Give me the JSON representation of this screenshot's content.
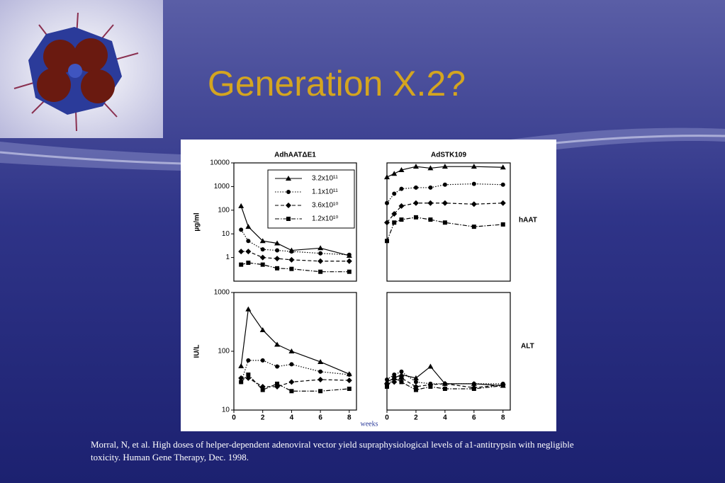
{
  "title": "Generation X.2?",
  "caption": [
    "Morral, N, et al. High doses of helper-dependent adenoviral vector yield supraphysiological levels of a1-antitrypsin with negligible",
    "toxicity. Human Gene Therapy, Dec. 1998."
  ],
  "figure": {
    "row_labels": [
      "hAAT",
      "ALT"
    ],
    "x_label": "weeks"
  },
  "chart_data": [
    {
      "type": "line",
      "title": "AdhAATΔE1",
      "y_label": "µg/ml",
      "log_y": true,
      "legend": "upper right",
      "ylim": [
        0.1,
        10000
      ],
      "yticks": [
        10000,
        1000,
        100,
        10,
        1
      ],
      "xlim": [
        0,
        8.5
      ],
      "x": [
        0.5,
        1,
        2,
        3,
        4,
        6,
        8
      ],
      "series": [
        {
          "name": "3.2x10¹¹",
          "color": "#000000",
          "marker": "triangle",
          "dash": "solid",
          "values": [
            150,
            20,
            5,
            4,
            2,
            2.5,
            1.2
          ]
        },
        {
          "name": "1.1x10¹¹",
          "color": "#000000",
          "marker": "circle",
          "dash": "dotted",
          "values": [
            15,
            5,
            2.2,
            2,
            1.8,
            1.5,
            1.3
          ]
        },
        {
          "name": "3.6x10¹⁰",
          "color": "#000000",
          "marker": "diamond",
          "dash": "dashed",
          "values": [
            1.8,
            1.8,
            1,
            0.9,
            0.8,
            0.7,
            0.7
          ]
        },
        {
          "name": "1.2x10¹⁰",
          "color": "#000000",
          "marker": "square",
          "dash": "dashdot",
          "values": [
            0.5,
            0.6,
            0.5,
            0.35,
            0.33,
            0.25,
            0.25
          ]
        }
      ]
    },
    {
      "type": "line",
      "title": "AdSTK109",
      "log_y": true,
      "ylim": [
        0.1,
        10000
      ],
      "xlim": [
        0,
        8.5
      ],
      "x": [
        0,
        0.5,
        1,
        2,
        3,
        4,
        6,
        8
      ],
      "series": [
        {
          "color": "#000000",
          "marker": "triangle",
          "dash": "solid",
          "values": [
            2500,
            3500,
            5000,
            7000,
            6000,
            7000,
            7000,
            6500
          ]
        },
        {
          "color": "#000000",
          "marker": "circle",
          "dash": "dotted",
          "values": [
            200,
            500,
            800,
            900,
            900,
            1200,
            1300,
            1200
          ]
        },
        {
          "color": "#000000",
          "marker": "diamond",
          "dash": "dashed",
          "values": [
            30,
            70,
            150,
            200,
            200,
            200,
            180,
            200
          ]
        },
        {
          "color": "#000000",
          "marker": "square",
          "dash": "dashdot",
          "values": [
            5,
            30,
            40,
            50,
            40,
            30,
            20,
            25
          ]
        }
      ]
    },
    {
      "type": "line",
      "y_label": "IU/L",
      "log_y": true,
      "ylim": [
        10,
        1000
      ],
      "yticks": [
        1000,
        100,
        10
      ],
      "xlim": [
        0,
        8.5
      ],
      "xticks": [
        0,
        2,
        4,
        6,
        8
      ],
      "x": [
        0.5,
        1,
        2,
        3,
        4,
        6,
        8
      ],
      "series": [
        {
          "color": "#000000",
          "marker": "triangle",
          "dash": "solid",
          "values": [
            56,
            520,
            230,
            130,
            100,
            66,
            41
          ]
        },
        {
          "color": "#000000",
          "marker": "circle",
          "dash": "dotted",
          "values": [
            30,
            70,
            70,
            55,
            60,
            45,
            40
          ]
        },
        {
          "color": "#000000",
          "marker": "diamond",
          "dash": "dashed",
          "values": [
            35,
            35,
            25,
            25,
            30,
            33,
            32
          ]
        },
        {
          "color": "#000000",
          "marker": "square",
          "dash": "dashdot",
          "values": [
            30,
            40,
            22,
            28,
            21,
            21,
            23
          ]
        }
      ]
    },
    {
      "type": "line",
      "log_y": true,
      "ylim": [
        10,
        1000
      ],
      "xlim": [
        0,
        8.5
      ],
      "xticks": [
        0,
        2,
        4,
        6,
        8
      ],
      "x": [
        0,
        0.5,
        1,
        2,
        3,
        4,
        6,
        8
      ],
      "series": [
        {
          "color": "#000000",
          "marker": "triangle",
          "dash": "solid",
          "values": [
            30,
            35,
            40,
            35,
            55,
            28,
            28,
            26
          ]
        },
        {
          "color": "#000000",
          "marker": "circle",
          "dash": "dotted",
          "values": [
            33,
            40,
            45,
            30,
            28,
            28,
            28,
            28
          ]
        },
        {
          "color": "#000000",
          "marker": "diamond",
          "dash": "dashed",
          "values": [
            28,
            30,
            35,
            25,
            27,
            28,
            24,
            27
          ]
        },
        {
          "color": "#000000",
          "marker": "square",
          "dash": "dashdot",
          "values": [
            25,
            35,
            30,
            22,
            25,
            23,
            23,
            26
          ]
        }
      ]
    }
  ]
}
